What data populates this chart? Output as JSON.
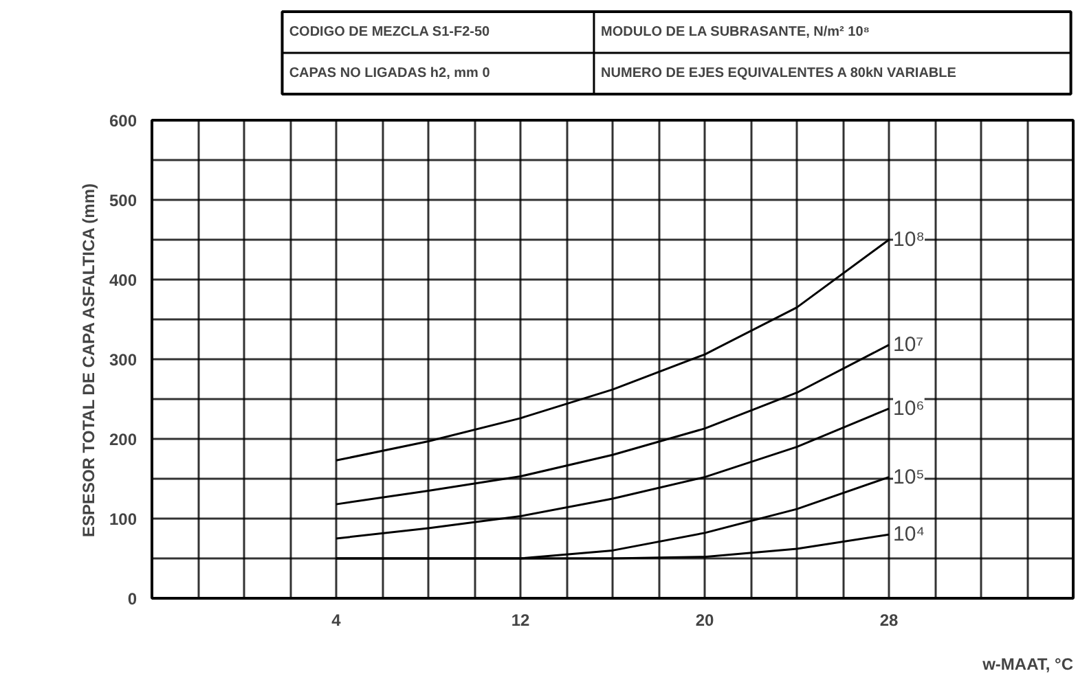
{
  "chart_data": {
    "type": "line",
    "annotations": [
      "CODIGO DE MEZCLA S1-F2-50",
      "CAPAS NO LIGADAS h2, mm   0",
      "MODULO DE LA SUBRASANTE, N/m²   10⁸",
      "NUMERO DE EJES EQUIVALENTES A 80kN   VARIABLE"
    ],
    "xlabel": "w-MAAT, °C",
    "ylabel": "ESPESOR TOTAL DE CAPA ASFALTICA (mm)",
    "x": [
      4,
      8,
      12,
      16,
      20,
      24,
      28
    ],
    "series": [
      {
        "name": "10⁸",
        "color": "#000000",
        "values": [
          173,
          197,
          226,
          262,
          306,
          365,
          450
        ]
      },
      {
        "name": "10⁷",
        "color": "#000000",
        "values": [
          118,
          135,
          153,
          180,
          213,
          258,
          318
        ]
      },
      {
        "name": "10⁶",
        "color": "#000000",
        "values": [
          75,
          88,
          103,
          125,
          152,
          190,
          238
        ]
      },
      {
        "name": "10⁵",
        "color": "#000000",
        "values": [
          50,
          50,
          50,
          60,
          82,
          112,
          152
        ]
      },
      {
        "name": "10⁴",
        "color": "#000000",
        "values": [
          50,
          50,
          50,
          50,
          52,
          62,
          80
        ]
      }
    ],
    "xlim": [
      -4,
      36
    ],
    "ylim": [
      0,
      600
    ],
    "xticks": [
      {
        "value": -4,
        "label": null
      },
      {
        "value": -2,
        "label": null
      },
      {
        "value": 0,
        "label": null
      },
      {
        "value": 2,
        "label": null
      },
      4,
      {
        "value": 6,
        "label": null
      },
      {
        "value": 8,
        "label": null
      },
      {
        "value": 10,
        "label": null
      },
      12,
      {
        "value": 14,
        "label": null
      },
      {
        "value": 16,
        "label": null
      },
      {
        "value": 18,
        "label": null
      },
      20,
      {
        "value": 22,
        "label": null
      },
      {
        "value": 24,
        "label": null
      },
      {
        "value": 26,
        "label": null
      },
      28,
      {
        "value": 30,
        "label": null
      },
      {
        "value": 32,
        "label": null
      },
      {
        "value": 34,
        "label": null
      },
      {
        "value": 36,
        "label": null
      }
    ],
    "yticks": [
      0,
      {
        "value": 50,
        "label": null
      },
      100,
      {
        "value": 150,
        "label": null
      },
      200,
      {
        "value": 250,
        "label": null
      },
      300,
      {
        "value": 350,
        "label": null
      },
      400,
      {
        "value": 450,
        "label": null
      },
      500,
      {
        "value": 550,
        "label": null
      },
      600
    ],
    "grid": true,
    "line_style": "solid",
    "marker": "none"
  }
}
